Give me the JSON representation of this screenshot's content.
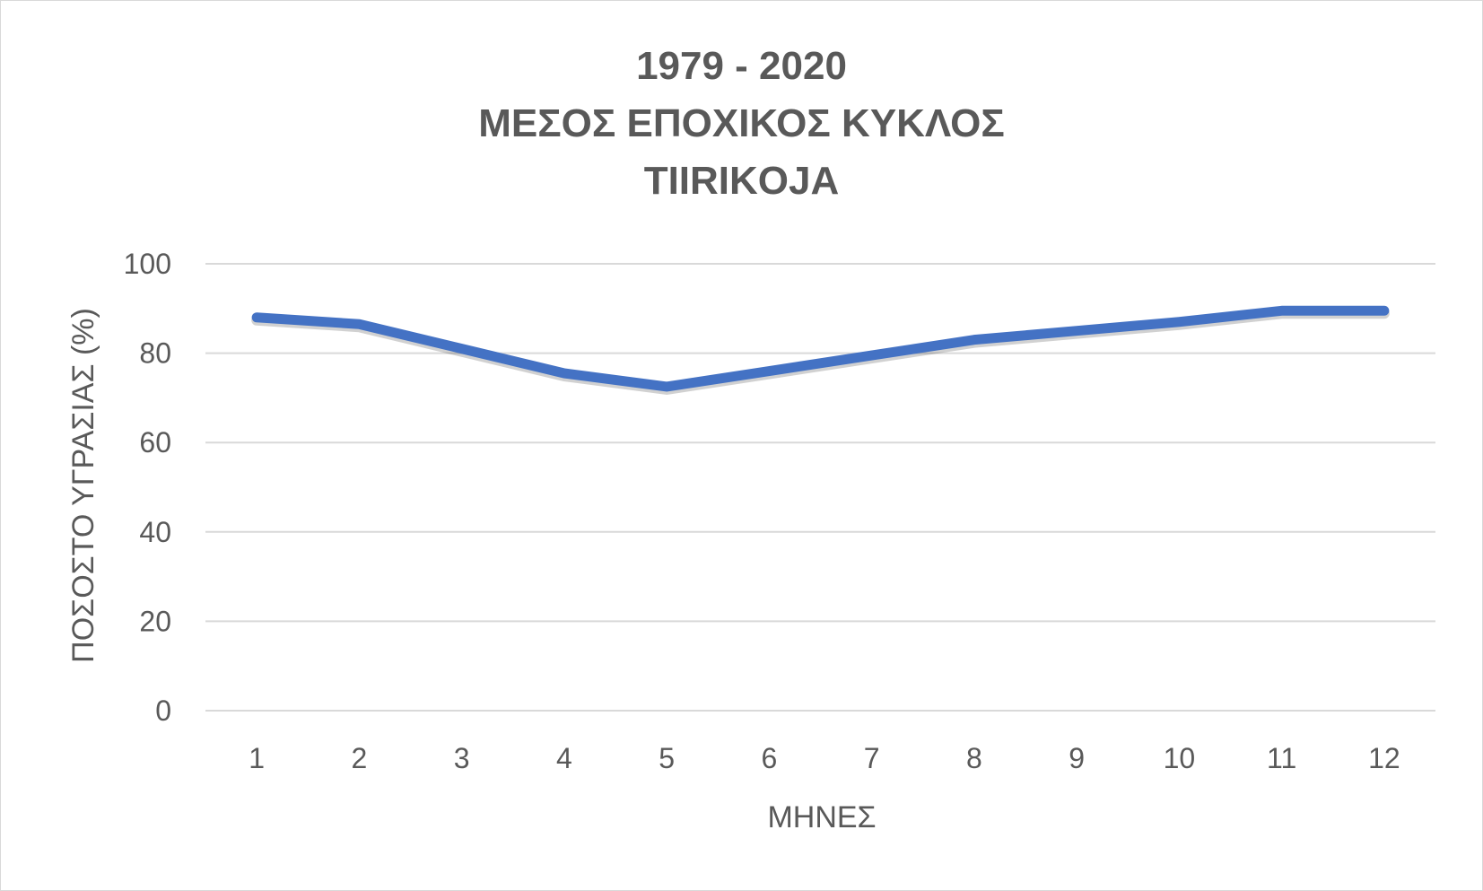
{
  "chart_data": {
    "type": "line",
    "title_lines": [
      "1979 - 2020",
      "ΜΕΣΟΣ ΕΠΟΧΙΚΟΣ ΚΥΚΛΟΣ",
      "TIIRIKOJA"
    ],
    "xlabel": "ΜΗΝΕΣ",
    "ylabel": "ΠΟΣΟΣΤΟ ΥΓΡΑΣΙΑΣ (%)",
    "categories": [
      "1",
      "2",
      "3",
      "4",
      "5",
      "6",
      "7",
      "8",
      "9",
      "10",
      "11",
      "12"
    ],
    "series": [
      {
        "values": [
          88.0,
          86.5,
          81.0,
          75.5,
          72.5,
          76.0,
          79.5,
          83.0,
          85.0,
          87.0,
          89.5,
          89.5
        ],
        "color": "#4472C4"
      }
    ],
    "ylim": [
      0,
      100
    ],
    "yticks": [
      0,
      20,
      40,
      60,
      80,
      100
    ],
    "grid": true,
    "legend": "none",
    "colors": {
      "gridline": "#d9d9d9",
      "text": "#595959",
      "line": "#4472C4"
    }
  }
}
